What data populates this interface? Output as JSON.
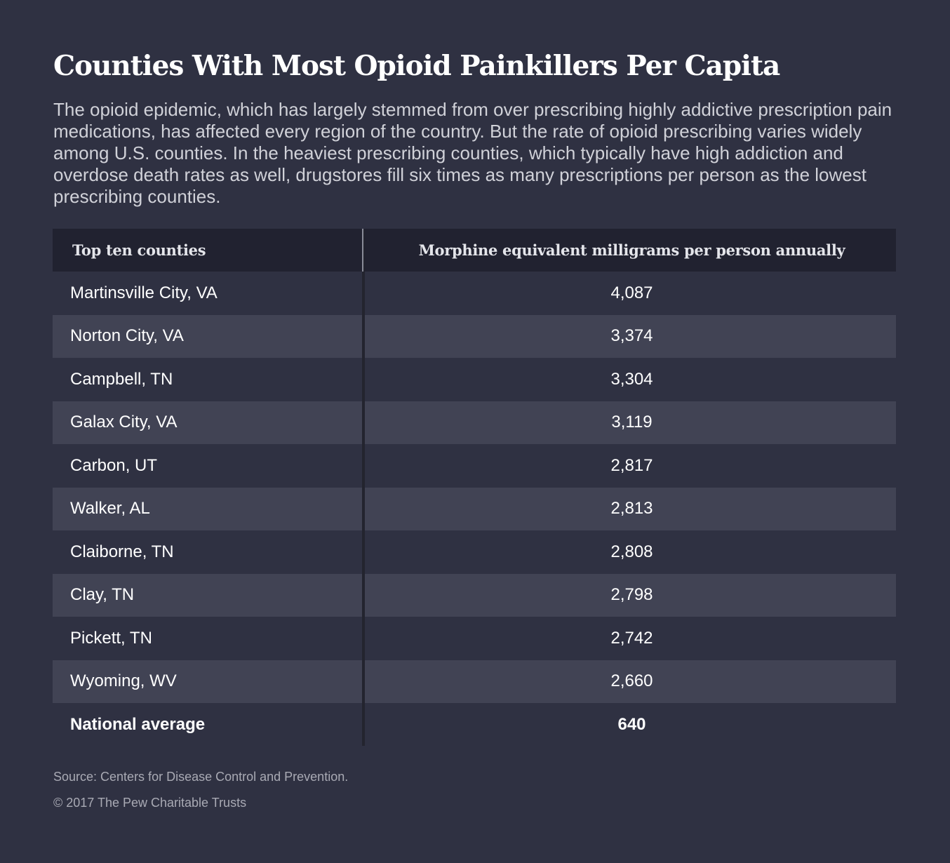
{
  "title": "Counties With Most Opioid Painkillers Per Capita",
  "subtitle": "The opioid epidemic, which has largely stemmed from over prescribing highly addictive prescription pain medications, has affected every region of the country. But the rate of opioid prescribing varies widely among U.S. counties. In the heaviest prescribing counties, which typically have high addiction and overdose death rates as well, drugstores fill six times as many prescriptions per person as the lowest prescribing counties.",
  "chart_data": {
    "type": "table",
    "columns": [
      "Top ten counties",
      "Morphine equivalent milligrams per person annually"
    ],
    "rows": [
      [
        "Martinsville City, VA",
        "4,087"
      ],
      [
        "Norton City, VA",
        "3,374"
      ],
      [
        "Campbell, TN",
        "3,304"
      ],
      [
        "Galax City, VA",
        "3,119"
      ],
      [
        "Carbon, UT",
        "2,817"
      ],
      [
        "Walker, AL",
        "2,813"
      ],
      [
        "Claiborne, TN",
        "2,808"
      ],
      [
        "Clay, TN",
        "2,798"
      ],
      [
        "Pickett, TN",
        "2,742"
      ],
      [
        "Wyoming, WV",
        "2,660"
      ]
    ],
    "total": [
      "National average",
      "640"
    ]
  },
  "source": "Source: Centers for Disease Control and Prevention.",
  "copyright": "© 2017 The Pew Charitable Trusts",
  "colors": {
    "background": "#2f3142",
    "header_row": "#212230",
    "stripe_row": "#414354",
    "text": "#ffffff",
    "muted_text": "#a9aab4"
  }
}
